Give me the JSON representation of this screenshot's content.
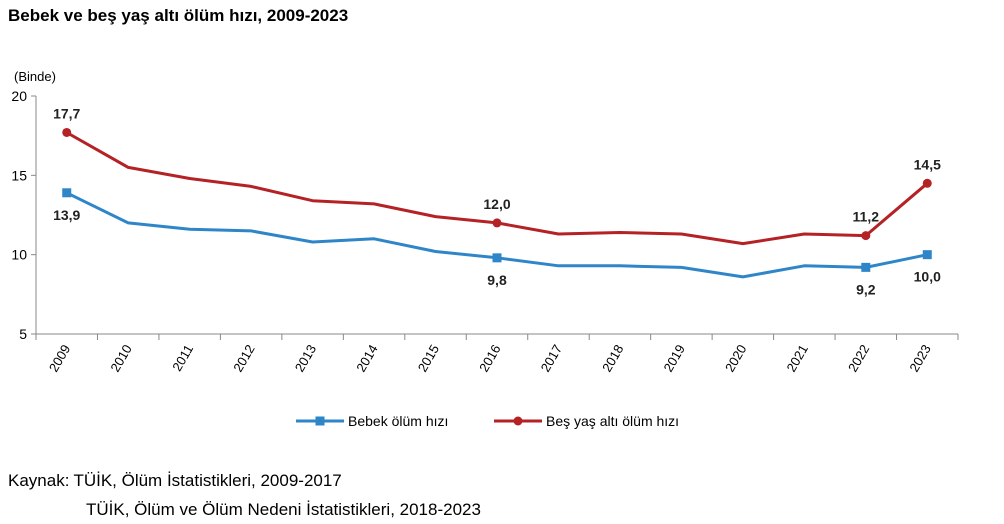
{
  "chart_data": {
    "type": "line",
    "title": "Bebek ve beş yaş altı ölüm hızı, 2009-2023",
    "unit_label": "(Binde)",
    "x": [
      "2009",
      "2010",
      "2011",
      "2012",
      "2013",
      "2014",
      "2015",
      "2016",
      "2017",
      "2018",
      "2019",
      "2020",
      "2021",
      "2022",
      "2023"
    ],
    "ylim": [
      5,
      20
    ],
    "yticks": [
      "5",
      "10",
      "15",
      "20"
    ],
    "grid": false,
    "legend_position": "bottom",
    "series": [
      {
        "name": "Bebek ölüm hızı",
        "color": "#2e86c9",
        "marker": "square",
        "values": [
          13.9,
          12.0,
          11.6,
          11.5,
          10.8,
          11.0,
          10.2,
          9.8,
          9.3,
          9.3,
          9.2,
          8.6,
          9.3,
          9.2,
          10.0
        ],
        "labels": {
          "0": "13,9",
          "7": "9,8",
          "13": "9,2",
          "14": "10,0"
        }
      },
      {
        "name": "Beş yaş altı ölüm hızı",
        "color": "#b52225",
        "marker": "circle",
        "values": [
          17.7,
          15.5,
          14.8,
          14.3,
          13.4,
          13.2,
          12.4,
          12.0,
          11.3,
          11.4,
          11.3,
          10.7,
          11.3,
          11.2,
          14.5
        ],
        "labels": {
          "0": "17,7",
          "7": "12,0",
          "13": "11,2",
          "14": "14,5"
        }
      }
    ]
  },
  "source": {
    "label": "Kaynak:",
    "line1": "TÜİK, Ölüm İstatistikleri, 2009-2017",
    "line2": "TÜİK, Ölüm ve Ölüm Nedeni İstatistikleri, 2018-2023"
  }
}
